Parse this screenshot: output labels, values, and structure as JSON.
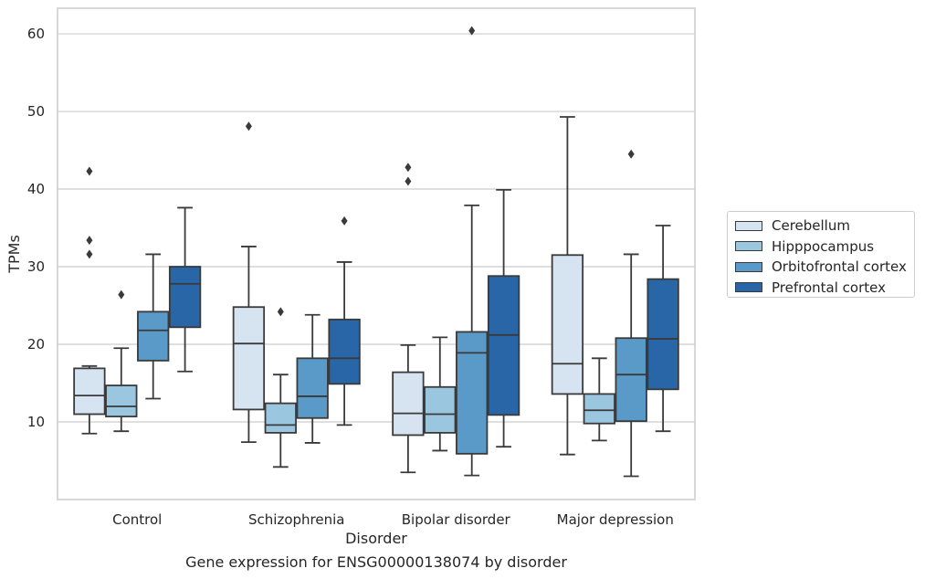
{
  "chart_data": {
    "type": "box",
    "title": "",
    "xlabel": "Disorder",
    "ylabel": "TPMs",
    "ylim": [
      0,
      63.3
    ],
    "yticks": [
      10,
      20,
      30,
      40,
      50,
      60
    ],
    "grid": "horizontal",
    "legend_position": "right",
    "categories": [
      "Control",
      "Schizophrenia",
      "Bipolar disorder",
      "Major depression"
    ],
    "series": [
      {
        "name": "Cerebellum",
        "color": "#d6e4f2",
        "boxes": [
          {
            "min": 8.5,
            "q1": 11.0,
            "median": 13.4,
            "q3": 16.9,
            "max": 17.2,
            "outliers": [
              31.6,
              33.4,
              42.3
            ]
          },
          {
            "min": 7.4,
            "q1": 11.6,
            "median": 20.1,
            "q3": 24.8,
            "max": 32.6,
            "outliers": [
              48.1
            ]
          },
          {
            "min": 3.5,
            "q1": 8.3,
            "median": 11.1,
            "q3": 16.4,
            "max": 19.9,
            "outliers": [
              41.0,
              42.8
            ]
          },
          {
            "min": 5.8,
            "q1": 13.6,
            "median": 17.5,
            "q3": 31.5,
            "max": 49.3,
            "outliers": []
          }
        ]
      },
      {
        "name": "Hipppocampus",
        "color": "#9ac6e0",
        "boxes": [
          {
            "min": 8.8,
            "q1": 10.7,
            "median": 12.0,
            "q3": 14.7,
            "max": 19.5,
            "outliers": [
              26.4
            ]
          },
          {
            "min": 4.2,
            "q1": 8.6,
            "median": 9.6,
            "q3": 12.4,
            "max": 16.1,
            "outliers": [
              24.2
            ]
          },
          {
            "min": 6.3,
            "q1": 8.6,
            "median": 11.0,
            "q3": 14.5,
            "max": 20.9,
            "outliers": []
          },
          {
            "min": 7.6,
            "q1": 9.8,
            "median": 11.5,
            "q3": 13.6,
            "max": 18.2,
            "outliers": []
          }
        ]
      },
      {
        "name": "Orbitofrontal cortex",
        "color": "#5a9ac8",
        "boxes": [
          {
            "min": 13.0,
            "q1": 17.9,
            "median": 21.8,
            "q3": 24.2,
            "max": 31.6,
            "outliers": []
          },
          {
            "min": 7.3,
            "q1": 10.5,
            "median": 13.3,
            "q3": 18.2,
            "max": 23.8,
            "outliers": []
          },
          {
            "min": 3.1,
            "q1": 5.9,
            "median": 18.9,
            "q3": 21.6,
            "max": 37.9,
            "outliers": [
              60.4
            ]
          },
          {
            "min": 3.0,
            "q1": 10.1,
            "median": 16.1,
            "q3": 20.8,
            "max": 31.6,
            "outliers": [
              44.5
            ]
          }
        ]
      },
      {
        "name": "Prefrontal cortex",
        "color": "#2966a8",
        "boxes": [
          {
            "min": 16.5,
            "q1": 22.2,
            "median": 27.8,
            "q3": 30.0,
            "max": 37.6,
            "outliers": []
          },
          {
            "min": 9.6,
            "q1": 14.9,
            "median": 18.2,
            "q3": 23.2,
            "max": 30.6,
            "outliers": [
              35.9
            ]
          },
          {
            "min": 6.8,
            "q1": 10.9,
            "median": 21.2,
            "q3": 28.8,
            "max": 39.9,
            "outliers": []
          },
          {
            "min": 8.8,
            "q1": 14.2,
            "median": 20.7,
            "q3": 28.4,
            "max": 35.3,
            "outliers": []
          }
        ]
      }
    ]
  },
  "caption": "Gene expression for ENSG00000138074 by disorder"
}
